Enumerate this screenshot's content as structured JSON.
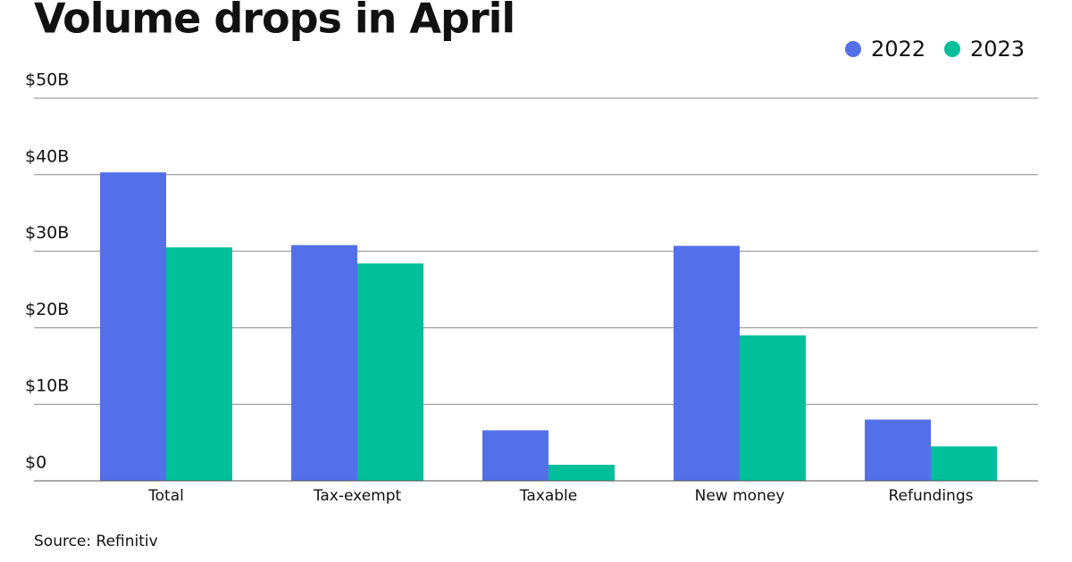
{
  "chart_data": {
    "type": "bar",
    "title": "Volume drops in April",
    "source": "Source: Refinitiv",
    "categories": [
      "Total",
      "Tax-exempt",
      "Taxable",
      "New money",
      "Refundings"
    ],
    "series": [
      {
        "name": "2022",
        "color": "#5470e8",
        "values": [
          40.3,
          30.8,
          6.6,
          30.7,
          8.0
        ]
      },
      {
        "name": "2023",
        "color": "#00bf9a",
        "values": [
          30.5,
          28.4,
          2.1,
          19.0,
          4.5
        ]
      }
    ],
    "ylim": [
      0,
      50
    ],
    "yticks": [
      {
        "value": 0,
        "label": "$0"
      },
      {
        "value": 10,
        "label": "$10B"
      },
      {
        "value": 20,
        "label": "$20B"
      },
      {
        "value": 30,
        "label": "$30B"
      },
      {
        "value": 40,
        "label": "$40B"
      },
      {
        "value": 50,
        "label": "$50B"
      }
    ],
    "grid": true,
    "legend": "top-right"
  }
}
